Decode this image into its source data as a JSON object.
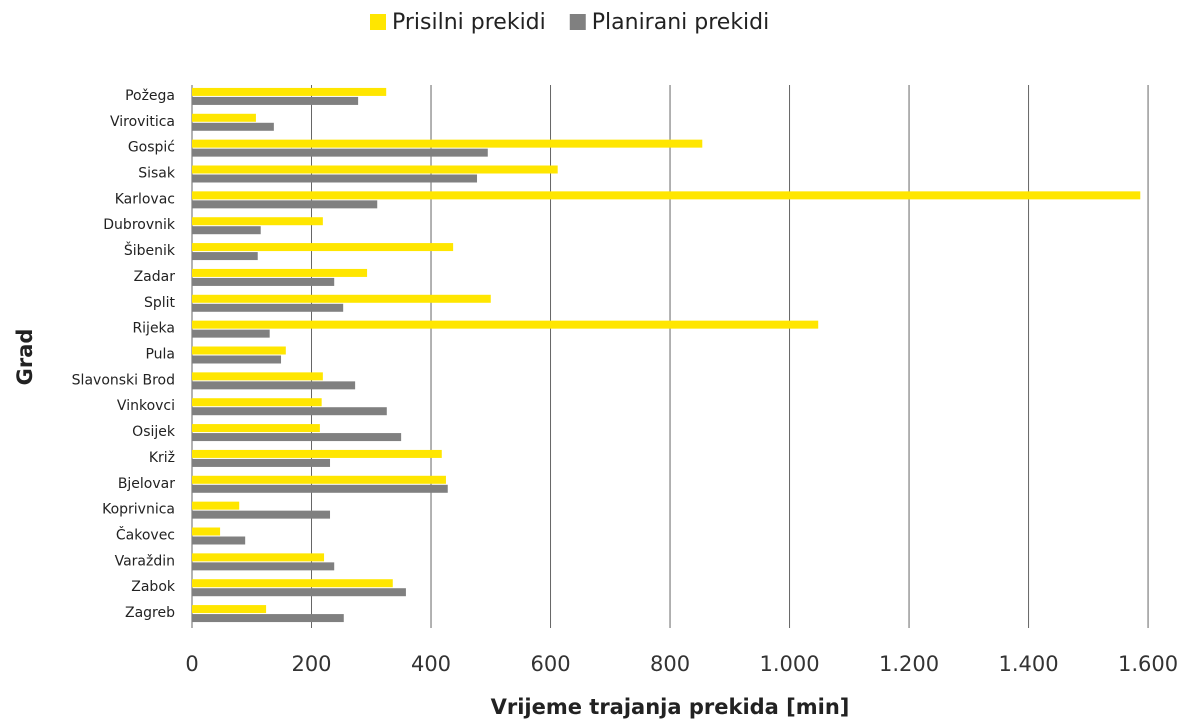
{
  "chart_data": {
    "type": "hbar",
    "x_label": "Vrijeme trajanja prekida [min]",
    "y_label": "Grad",
    "categories": [
      "Požega",
      "Virovitica",
      "Gospić",
      "Sisak",
      "Karlovac",
      "Dubrovnik",
      "Šibenik",
      "Zadar",
      "Split",
      "Rijeka",
      "Pula",
      "Slavonski Brod",
      "Vinkovci",
      "Osijek",
      "Križ",
      "Bjelovar",
      "Koprivnica",
      "Čakovec",
      "Varaždin",
      "Zabok",
      "Zagreb"
    ],
    "series": [
      {
        "name": "Prisilni prekidi",
        "color": "#ffe600",
        "values": [
          325,
          107,
          854,
          612,
          1587,
          219,
          437,
          293,
          500,
          1048,
          157,
          219,
          217,
          214,
          418,
          425,
          79,
          47,
          221,
          336,
          124
        ]
      },
      {
        "name": "Planirani prekidi",
        "color": "#808080",
        "values": [
          278,
          137,
          495,
          477,
          310,
          115,
          110,
          238,
          253,
          130,
          149,
          273,
          326,
          350,
          231,
          428,
          231,
          89,
          238,
          358,
          254
        ]
      }
    ],
    "xlim": [
      0,
      1620
    ],
    "xticks": [
      0,
      200,
      400,
      600,
      800,
      {
        "value": 1000,
        "label": "1.000"
      },
      {
        "value": 1200,
        "label": "1.200"
      },
      {
        "value": 1400,
        "label": "1.400"
      },
      {
        "value": 1600,
        "label": "1.600"
      }
    ],
    "grid": true,
    "legend": "top"
  }
}
